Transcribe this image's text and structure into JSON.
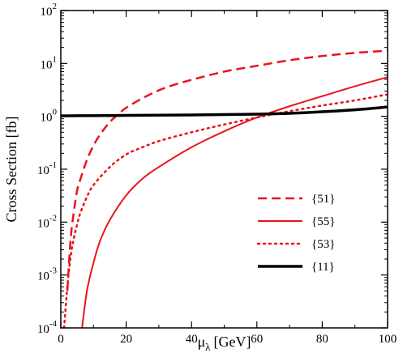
{
  "chart_data": {
    "type": "line",
    "xlabel": "μ",
    "xlabel_sub": "λ",
    "xlabel_unit": "[GeV]",
    "ylabel": "Cross Section [fb]",
    "xlim": [
      0,
      100
    ],
    "ylim": [
      0.0001,
      100
    ],
    "yscale": "log",
    "grid": false,
    "legend_position": "bottom-right",
    "x_ticks": [
      "0",
      "20",
      "40",
      "60",
      "80",
      "100"
    ],
    "y_ticks": [
      {
        "base": "10",
        "exp": "-4",
        "value": 0.0001
      },
      {
        "base": "10",
        "exp": "-3",
        "value": 0.001
      },
      {
        "base": "10",
        "exp": "-2",
        "value": 0.01
      },
      {
        "base": "10",
        "exp": "-1",
        "value": 0.1
      },
      {
        "base": "10",
        "exp": "0",
        "value": 1
      },
      {
        "base": "10",
        "exp": "1",
        "value": 10
      },
      {
        "base": "10",
        "exp": "2",
        "value": 100
      }
    ],
    "series": [
      {
        "name": "{51}",
        "color": "#e8141c",
        "style": "dashed",
        "x": [
          2,
          3,
          4,
          5,
          6,
          8,
          10,
          12,
          15,
          18,
          20,
          25,
          30,
          35,
          40,
          50,
          60,
          70,
          80,
          90,
          100
        ],
        "y": [
          0.0005,
          0.0047,
          0.016,
          0.04,
          0.065,
          0.15,
          0.28,
          0.45,
          0.78,
          1.15,
          1.45,
          2.2,
          3.1,
          4.0,
          4.9,
          7.0,
          9.0,
          11.5,
          13.8,
          15.8,
          17.5
        ]
      },
      {
        "name": "{55}",
        "color": "#e8141c",
        "style": "solid",
        "x": [
          6.5,
          8,
          10,
          12,
          15,
          20,
          25,
          30,
          40,
          50,
          60,
          70,
          80,
          90,
          100
        ],
        "y": [
          0.0001,
          0.0005,
          0.0017,
          0.0044,
          0.011,
          0.032,
          0.066,
          0.11,
          0.26,
          0.52,
          0.95,
          1.55,
          2.4,
          3.7,
          5.5
        ]
      },
      {
        "name": "{53}",
        "color": "#e8141c",
        "style": "dotted",
        "x": [
          1,
          2,
          3,
          4,
          5,
          6,
          8,
          10,
          15,
          20,
          25,
          30,
          40,
          50,
          60,
          70,
          80,
          90,
          100
        ],
        "y": [
          0.0001,
          0.0006,
          0.0022,
          0.005,
          0.009,
          0.015,
          0.03,
          0.05,
          0.11,
          0.19,
          0.26,
          0.34,
          0.5,
          0.7,
          0.95,
          1.25,
          1.6,
          2.0,
          2.6
        ]
      },
      {
        "name": "{11}",
        "color": "#000000",
        "style": "thick",
        "x": [
          0,
          10,
          20,
          30,
          40,
          50,
          60,
          70,
          80,
          90,
          100
        ],
        "y": [
          1.02,
          1.03,
          1.04,
          1.05,
          1.06,
          1.08,
          1.1,
          1.14,
          1.22,
          1.33,
          1.5
        ]
      }
    ]
  }
}
